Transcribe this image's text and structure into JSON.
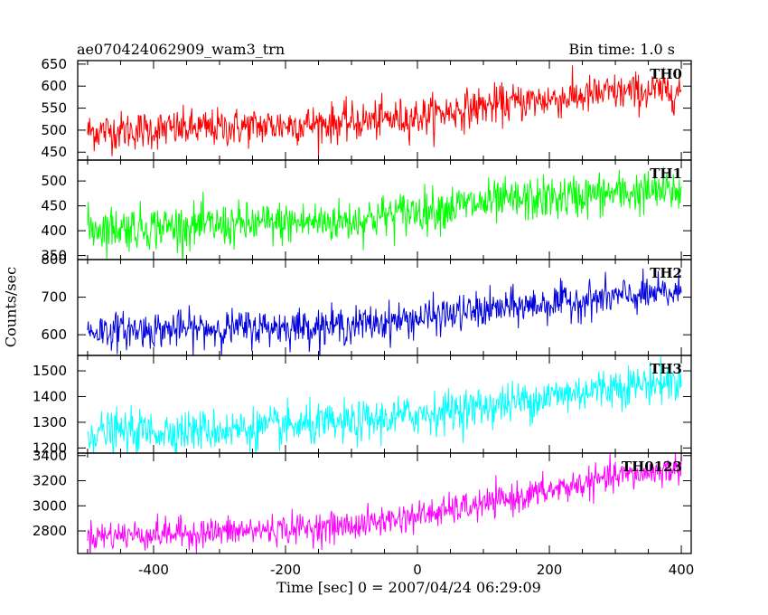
{
  "header": {
    "left": "ae070424062909_wam3_trn",
    "right": "Bin time: 1.0 s"
  },
  "axes": {
    "xlabel": "Time [sec] 0 = 2007/04/24 06:29:09",
    "ylabel": "Counts/sec"
  },
  "chart_data": {
    "type": "line",
    "x_range": [
      -515,
      415
    ],
    "x_ticks": [
      -400,
      -200,
      0,
      200,
      400
    ],
    "x_data_range": [
      -500,
      400
    ],
    "grid": false,
    "panels": [
      {
        "name": "TH0",
        "color": "#ff0000",
        "ylim": [
          432,
          658
        ],
        "y_ticks": [
          450,
          500,
          550,
          600,
          650
        ],
        "trend": [
          [
            -500,
            497
          ],
          [
            -300,
            505
          ],
          [
            -100,
            518
          ],
          [
            0,
            530
          ],
          [
            100,
            555
          ],
          [
            200,
            570
          ],
          [
            300,
            585
          ],
          [
            400,
            590
          ]
        ],
        "noise_sd": 22
      },
      {
        "name": "TH1",
        "color": "#00ff00",
        "ylim": [
          342,
          542
        ],
        "y_ticks": [
          350,
          400,
          450,
          500
        ],
        "trend": [
          [
            -500,
            405
          ],
          [
            -300,
            410
          ],
          [
            -100,
            420
          ],
          [
            0,
            440
          ],
          [
            100,
            455
          ],
          [
            200,
            465
          ],
          [
            300,
            475
          ],
          [
            400,
            480
          ]
        ],
        "noise_sd": 22
      },
      {
        "name": "TH2",
        "color": "#0000dd",
        "ylim": [
          545,
          800
        ],
        "y_ticks": [
          600,
          700,
          800
        ],
        "trend": [
          [
            -500,
            610
          ],
          [
            -300,
            617
          ],
          [
            -100,
            625
          ],
          [
            0,
            643
          ],
          [
            100,
            665
          ],
          [
            200,
            683
          ],
          [
            300,
            700
          ],
          [
            400,
            712
          ]
        ],
        "noise_sd": 24
      },
      {
        "name": "TH3",
        "color": "#00ffff",
        "ylim": [
          1180,
          1560
        ],
        "y_ticks": [
          1200,
          1300,
          1400,
          1500
        ],
        "trend": [
          [
            -500,
            1260
          ],
          [
            -300,
            1270
          ],
          [
            -100,
            1295
          ],
          [
            0,
            1330
          ],
          [
            100,
            1360
          ],
          [
            200,
            1400
          ],
          [
            300,
            1440
          ],
          [
            400,
            1460
          ]
        ],
        "noise_sd": 40
      },
      {
        "name": "TH0123",
        "color": "#ff00ff",
        "ylim": [
          2620,
          3420
        ],
        "y_ticks": [
          2800,
          3000,
          3200,
          3400
        ],
        "trend": [
          [
            -500,
            2760
          ],
          [
            -300,
            2790
          ],
          [
            -100,
            2840
          ],
          [
            0,
            2920
          ],
          [
            100,
            3010
          ],
          [
            200,
            3120
          ],
          [
            300,
            3230
          ],
          [
            400,
            3300
          ]
        ],
        "noise_sd": 60
      }
    ]
  }
}
